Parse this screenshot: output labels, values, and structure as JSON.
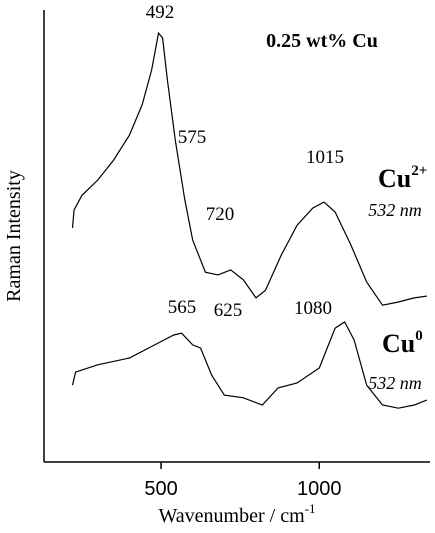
{
  "chart_data": {
    "type": "line",
    "x_label": {
      "text": "Wavenumber / cm",
      "sup": "-1"
    },
    "y_label": "Raman Intensity",
    "xlim": [
      130,
      1350
    ],
    "xticks": [
      500,
      1000
    ],
    "ylim": [
      0,
      100
    ],
    "series": [
      {
        "color": "#000000",
        "x": [
          220,
          225,
          250,
          300,
          350,
          400,
          440,
          470,
          492,
          505,
          520,
          545,
          575,
          600,
          640,
          680,
          720,
          760,
          800,
          830,
          880,
          930,
          980,
          1015,
          1050,
          1100,
          1150,
          1200,
          1250,
          1300,
          1340
        ],
        "values": [
          51.8,
          55.8,
          59,
          62.4,
          66.8,
          72.3,
          79,
          86.7,
          94.9,
          93.8,
          84.5,
          71.2,
          58,
          49.1,
          42,
          41.4,
          42.5,
          40.3,
          36.3,
          38,
          45.8,
          52.4,
          56.2,
          57.5,
          55.3,
          48,
          39.8,
          34.7,
          35.4,
          36.3,
          36.7
        ]
      },
      {
        "color": "#000000",
        "x": [
          220,
          230,
          300,
          400,
          480,
          540,
          565,
          600,
          625,
          660,
          700,
          760,
          820,
          870,
          930,
          1000,
          1050,
          1080,
          1110,
          1150,
          1200,
          1250,
          1300,
          1340
        ],
        "values": [
          17,
          19.9,
          21.5,
          23,
          25.9,
          28.1,
          28.5,
          25.9,
          25.2,
          19.2,
          14.8,
          14.2,
          12.6,
          16.4,
          17.5,
          20.8,
          29.6,
          31,
          27,
          17,
          12.6,
          11.9,
          12.6,
          13.7
        ]
      }
    ],
    "annotations": [
      "492",
      "575",
      "720",
      "1015",
      "565",
      "625",
      "1080",
      "0.25 wt% Cu",
      "532 nm",
      "532 nm"
    ],
    "labels": [
      {
        "text": "Cu",
        "sup": "2+"
      },
      {
        "text": "Cu",
        "sup": "0"
      }
    ]
  }
}
